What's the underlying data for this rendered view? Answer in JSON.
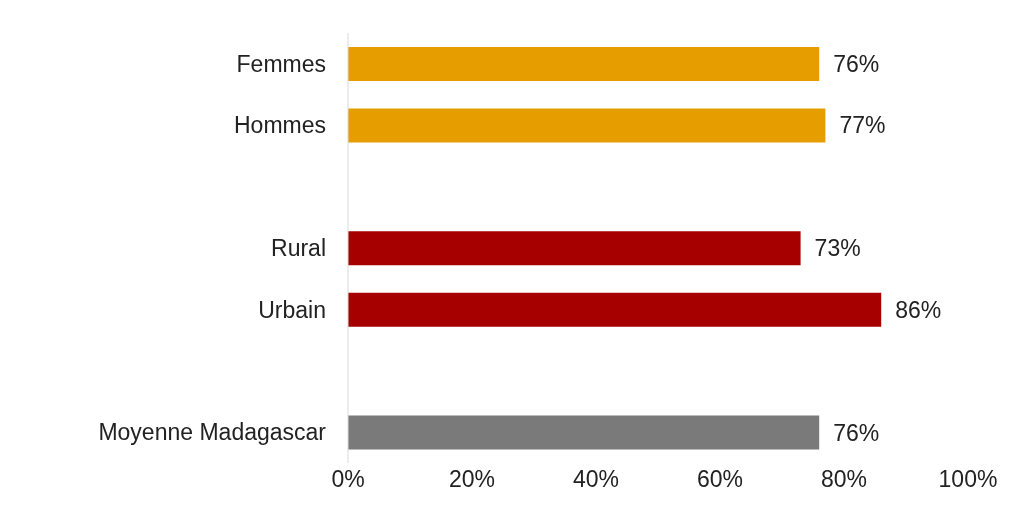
{
  "chart_data": {
    "type": "bar",
    "orientation": "horizontal",
    "categories": [
      "Femmes",
      "Hommes",
      null,
      "Rural",
      "Urbain",
      null,
      "Moyenne Madagascar"
    ],
    "values": [
      76,
      77,
      null,
      73,
      86,
      null,
      76
    ],
    "colors": [
      "#e69d00",
      "#e69d00",
      "#ffffff",
      "#a60000",
      "#a60000",
      "#ffffff",
      "#7a7a7a"
    ],
    "value_labels": [
      "76%",
      "77%",
      null,
      "73%",
      "86%",
      null,
      "76%"
    ],
    "xlim": [
      0,
      100
    ],
    "xticks": [
      {
        "value": 0,
        "label": "0%"
      },
      {
        "value": 20,
        "label": "20%"
      },
      {
        "value": 40,
        "label": "40%"
      },
      {
        "value": 60,
        "label": "60%"
      },
      {
        "value": 80,
        "label": "80%"
      },
      {
        "value": 100,
        "label": "100%"
      }
    ],
    "grid": false,
    "legend": false
  }
}
